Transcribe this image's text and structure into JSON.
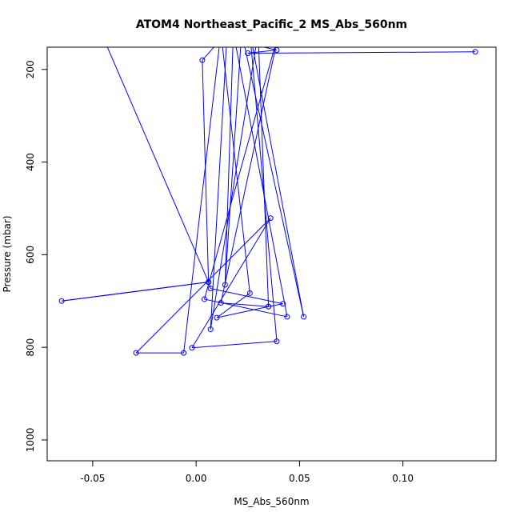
{
  "chart_data": {
    "type": "line",
    "title": "ATOM4 Northeast_Pacific_2 MS_Abs_560nm",
    "xlabel": "MS_Abs_560nm",
    "ylabel": "Pressure (mbar)",
    "xlim": [
      -0.072,
      0.145
    ],
    "ylim": [
      1045,
      152
    ],
    "y_reversed": true,
    "x_ticks": [
      -0.05,
      0.0,
      0.05,
      0.1
    ],
    "x_tick_labels": [
      "-0.05",
      "0.00",
      "0.05",
      "0.10"
    ],
    "y_ticks": [
      200,
      400,
      600,
      800,
      1000
    ],
    "y_tick_labels": [
      "200",
      "400",
      "600",
      "800",
      "1000"
    ],
    "grid": false,
    "legend": "none",
    "color": "#0000ff",
    "series": [
      {
        "points": [
          {
            "x": 0.135,
            "y": 162
          },
          {
            "x": 0.025,
            "y": 165
          },
          {
            "x": 0.039,
            "y": 158
          },
          {
            "x": 0.0,
            "y": 120
          },
          {
            "x": -0.045,
            "y": 130
          },
          {
            "x": 0.006,
            "y": 659
          },
          {
            "x": -0.065,
            "y": 700
          },
          {
            "x": 0.006,
            "y": 659
          },
          {
            "x": 0.007,
            "y": 673
          },
          {
            "x": 0.042,
            "y": 706
          },
          {
            "x": 0.035,
            "y": 712
          },
          {
            "x": 0.012,
            "y": 704
          },
          {
            "x": 0.04,
            "y": 120
          },
          {
            "x": 0.004,
            "y": 696
          },
          {
            "x": 0.044,
            "y": 734
          },
          {
            "x": 0.018,
            "y": 120
          },
          {
            "x": 0.014,
            "y": 665
          },
          {
            "x": 0.022,
            "y": 120
          },
          {
            "x": 0.052,
            "y": 734
          },
          {
            "x": 0.026,
            "y": 120
          },
          {
            "x": 0.039,
            "y": 787
          },
          {
            "x": -0.002,
            "y": 801
          },
          {
            "x": 0.036,
            "y": 521
          },
          {
            "x": -0.029,
            "y": 812
          },
          {
            "x": -0.006,
            "y": 812
          },
          {
            "x": 0.012,
            "y": 120
          },
          {
            "x": 0.026,
            "y": 683
          },
          {
            "x": 0.01,
            "y": 736
          },
          {
            "x": 0.035,
            "y": 712
          },
          {
            "x": 0.03,
            "y": 120
          },
          {
            "x": 0.007,
            "y": 761
          },
          {
            "x": 0.015,
            "y": 120
          },
          {
            "x": 0.003,
            "y": 180
          },
          {
            "x": 0.006,
            "y": 659
          }
        ]
      }
    ]
  }
}
